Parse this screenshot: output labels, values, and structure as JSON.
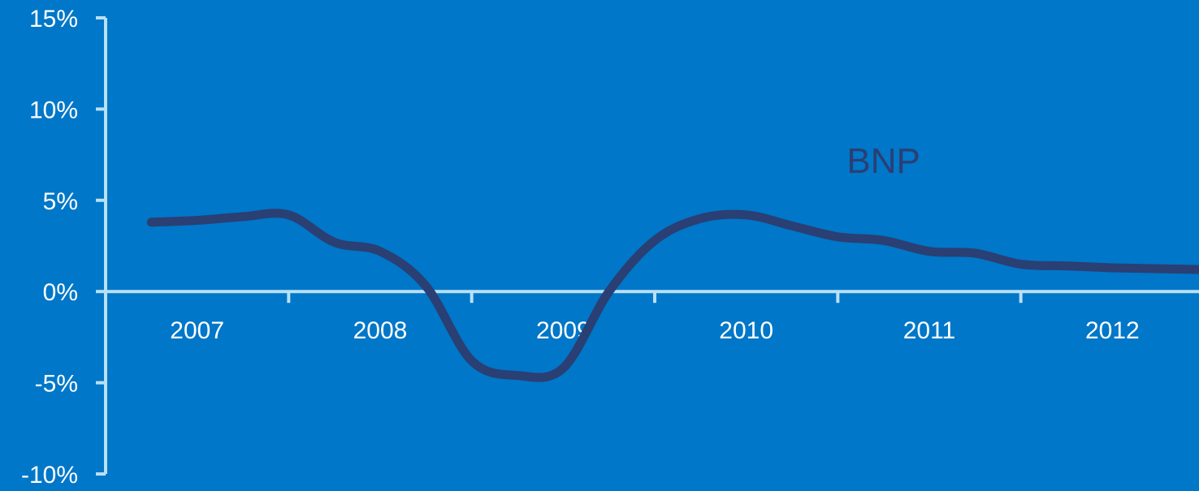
{
  "colors": {
    "background": "#0077c8",
    "axis": "#b9e0f5",
    "line": "#2a3f73",
    "text": "#ffffff"
  },
  "chart_data": {
    "type": "line",
    "title": "",
    "xlabel": "",
    "ylabel": "",
    "x_tick_labels": [
      "2007",
      "2008",
      "2009",
      "2010",
      "2011",
      "2012"
    ],
    "y_tick_labels": [
      "15%",
      "10%",
      "5%",
      "0%",
      "-5%",
      "-10%"
    ],
    "ylim": [
      -10,
      15
    ],
    "grid": false,
    "series": [
      {
        "name": "BNP",
        "x": [
          2006.75,
          2007.0,
          2007.25,
          2007.5,
          2007.75,
          2008.0,
          2008.25,
          2008.5,
          2008.75,
          2009.0,
          2009.25,
          2009.5,
          2009.75,
          2010.0,
          2010.25,
          2010.5,
          2010.75,
          2011.0,
          2011.25,
          2011.5,
          2011.75,
          2012.0,
          2012.25,
          2012.5
        ],
        "values": [
          3.8,
          3.9,
          4.1,
          4.2,
          2.7,
          2.2,
          0.3,
          -3.8,
          -4.6,
          -4.2,
          0.0,
          2.8,
          4.0,
          4.2,
          3.6,
          3.0,
          2.8,
          2.2,
          2.1,
          1.5,
          1.4,
          1.3,
          1.25,
          1.2
        ]
      }
    ]
  }
}
